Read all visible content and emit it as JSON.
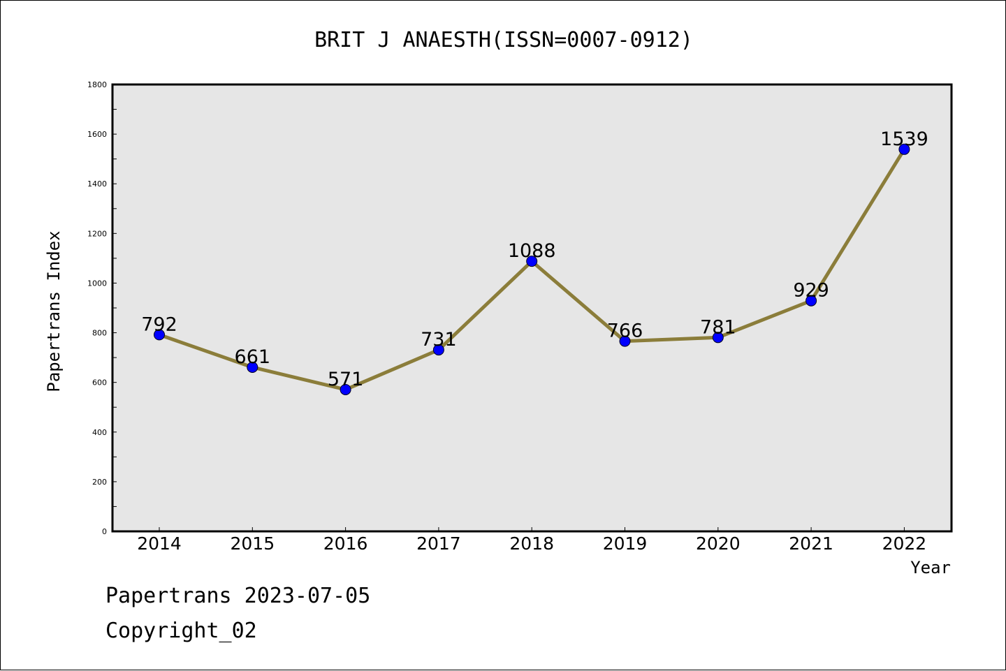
{
  "chart_data": {
    "type": "line",
    "title": "BRIT J ANAESTH(ISSN=0007-0912)",
    "xlabel": "Year",
    "ylabel": "Papertrans Index",
    "categories": [
      "2014",
      "2015",
      "2016",
      "2017",
      "2018",
      "2019",
      "2020",
      "2021",
      "2022"
    ],
    "series": [
      {
        "values": [
          792,
          661,
          571,
          731,
          1088,
          766,
          781,
          929,
          1539
        ]
      }
    ],
    "data_labels": [
      "792",
      "661",
      "571",
      "731",
      "1088",
      "766",
      "781",
      "929",
      "1539"
    ],
    "ylim": [
      0,
      1800
    ],
    "yticks": [
      0,
      200,
      400,
      600,
      800,
      1000,
      1200,
      1400,
      1600,
      1800
    ],
    "ytick_labels": [
      "0",
      "200",
      "400",
      "600",
      "800",
      "1000",
      "1200",
      "1400",
      "1600",
      "1800"
    ],
    "grid": false,
    "colors": {
      "line": "#8b7d3a",
      "marker": "#0000ff",
      "plot_background": "#e6e6e6"
    }
  },
  "footer": {
    "date_line": "Papertrans 2023-07-05",
    "copyright_line": "Copyright_02"
  }
}
